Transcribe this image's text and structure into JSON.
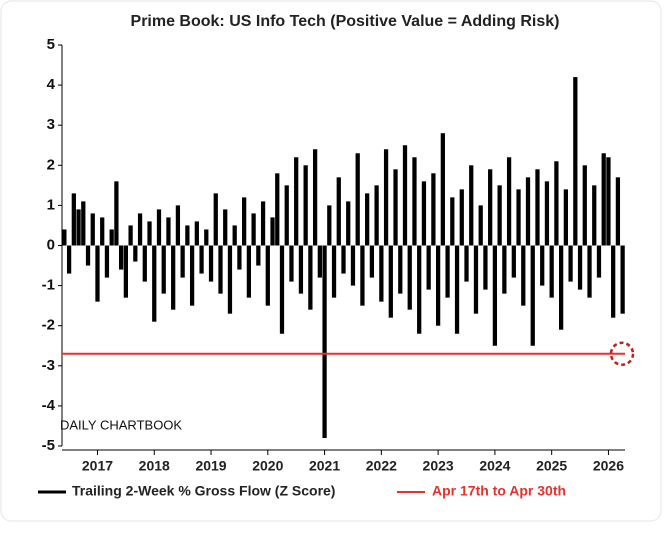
{
  "chart_data": {
    "type": "bar",
    "title": "Prime Book: US Info Tech (Positive Value = Adding Risk)",
    "categories": [
      null,
      null,
      null,
      null,
      null,
      null,
      null,
      "2017",
      null,
      null,
      null,
      null,
      null,
      null,
      null,
      null,
      null,
      null,
      null,
      "2018",
      null,
      null,
      null,
      null,
      null,
      null,
      null,
      null,
      null,
      null,
      null,
      "2019",
      null,
      null,
      null,
      null,
      null,
      null,
      null,
      null,
      null,
      null,
      null,
      "2020",
      null,
      null,
      null,
      null,
      null,
      null,
      null,
      null,
      null,
      null,
      null,
      "2021",
      null,
      null,
      null,
      null,
      null,
      null,
      null,
      null,
      null,
      null,
      null,
      "2022",
      null,
      null,
      null,
      null,
      null,
      null,
      null,
      null,
      null,
      null,
      null,
      "2023",
      null,
      null,
      null,
      null,
      null,
      null,
      null,
      null,
      null,
      null,
      null,
      "2024",
      null,
      null,
      null,
      null,
      null,
      null,
      null,
      null,
      null,
      null,
      null,
      "2025",
      null,
      null,
      null,
      null,
      null,
      null,
      null,
      null,
      null,
      null,
      null,
      "2026",
      null,
      null,
      null
    ],
    "series": [
      {
        "name": "Trailing 2-Week % Gross Flow (Z Score)",
        "color": "#000000",
        "values": [
          0.4,
          -0.7,
          1.3,
          0.9,
          1.1,
          -0.5,
          0.8,
          -1.4,
          0.7,
          -0.8,
          0.4,
          1.6,
          -0.6,
          -1.3,
          0.5,
          -0.4,
          0.8,
          -0.9,
          0.6,
          -1.9,
          0.9,
          -1.2,
          0.7,
          -1.6,
          1.0,
          -0.8,
          0.5,
          -1.5,
          0.6,
          -0.7,
          0.4,
          -0.9,
          1.3,
          -1.2,
          0.9,
          -1.7,
          0.5,
          -0.6,
          1.2,
          -1.3,
          0.8,
          -0.5,
          1.1,
          -1.5,
          0.7,
          1.8,
          -2.2,
          1.5,
          -0.9,
          2.2,
          -1.2,
          2.0,
          -1.6,
          2.4,
          -0.8,
          -4.8,
          1.0,
          -1.3,
          1.7,
          -0.7,
          1.1,
          -1.0,
          2.3,
          -1.5,
          1.3,
          -0.8,
          1.5,
          -1.4,
          2.4,
          -1.8,
          1.9,
          -1.2,
          2.5,
          -1.6,
          2.2,
          -2.2,
          1.6,
          -1.1,
          1.8,
          -2.0,
          2.8,
          -1.3,
          1.2,
          -2.2,
          1.4,
          -0.9,
          2.0,
          -1.7,
          1.0,
          -1.1,
          1.9,
          -2.5,
          1.5,
          -1.2,
          2.2,
          -0.8,
          1.4,
          -1.5,
          1.7,
          -2.5,
          1.9,
          -1.0,
          1.6,
          -1.3,
          2.1,
          -2.1,
          1.4,
          -0.9,
          4.2,
          -1.1,
          2.0,
          -1.3,
          1.5,
          -0.8,
          2.3,
          2.2,
          -1.8,
          1.7,
          -1.7
        ]
      }
    ],
    "reference_line": {
      "value": -2.7,
      "label": "Apr 17th to Apr 30th",
      "color": "#e8312a"
    },
    "annotation": "DAILY CHARTBOOK",
    "ylim": [
      -5,
      5
    ],
    "yticks": [
      -5,
      -4,
      -3,
      -2,
      -1,
      0,
      1,
      2,
      3,
      4,
      5
    ]
  }
}
